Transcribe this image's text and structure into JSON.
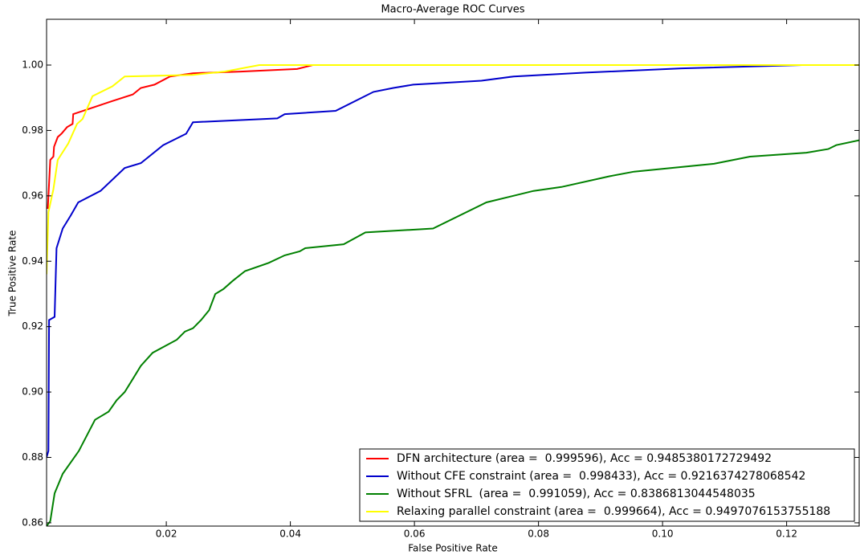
{
  "chart_data": {
    "type": "line",
    "title": "Macro-Average ROC Curves",
    "x_label": "False Positive Rate",
    "y_label": "True Positive Rate",
    "xlim": [
      0.0007,
      0.1317
    ],
    "ylim": [
      0.859,
      1.014
    ],
    "xticks": [
      0.02,
      0.04,
      0.06,
      0.08,
      {
        "value": 0.1,
        "label": "0.10"
      },
      0.12
    ],
    "yticks": [
      0.86,
      0.88,
      {
        "value": 0.9,
        "label": "0.90"
      },
      0.92,
      0.94,
      0.96,
      0.98,
      {
        "value": 1,
        "label": "1.00"
      }
    ],
    "legend": "lower right",
    "series": [
      {
        "name": "DFN architecture (area =  0.999596), Acc = 0.9485380172729492",
        "color": "#ff0000",
        "x": [
          0.0009,
          0.0013,
          0.0018,
          0.0019,
          0.0025,
          0.0031,
          0.004,
          0.0049,
          0.005,
          0.0113,
          0.0146,
          0.0159,
          0.0181,
          0.0206,
          0.0243,
          0.032,
          0.0411,
          0.0436,
          0.1317
        ],
        "values": [
          0.956,
          0.971,
          0.972,
          0.975,
          0.978,
          0.979,
          0.981,
          0.982,
          0.985,
          0.989,
          0.991,
          0.993,
          0.994,
          0.9965,
          0.9975,
          0.998,
          0.9988,
          1.0,
          1.0
        ]
      },
      {
        "name": "Without CFE constraint (area =  0.998433), Acc = 0.9216374278068542",
        "color": "#0000cc",
        "x": [
          0.0007,
          0.001,
          0.0011,
          0.002,
          0.0023,
          0.0033,
          0.0046,
          0.0058,
          0.0094,
          0.0133,
          0.0159,
          0.0172,
          0.0195,
          0.0232,
          0.0243,
          0.0379,
          0.0391,
          0.0473,
          0.0534,
          0.0566,
          0.0598,
          0.0708,
          0.076,
          0.0876,
          0.1031,
          0.1225,
          0.1317
        ],
        "values": [
          0.88,
          0.882,
          0.922,
          0.923,
          0.944,
          0.95,
          0.954,
          0.958,
          0.9615,
          0.9685,
          0.97,
          0.972,
          0.9755,
          0.979,
          0.9825,
          0.9837,
          0.985,
          0.986,
          0.9918,
          0.993,
          0.994,
          0.9952,
          0.9965,
          0.9977,
          0.999,
          1.0,
          1.0
        ]
      },
      {
        "name": "Without SFRL  (area =  0.991059), Acc = 0.8386813044548035",
        "color": "#008000",
        "x": [
          0.0007,
          0.0013,
          0.002,
          0.0033,
          0.0059,
          0.0085,
          0.0107,
          0.012,
          0.0133,
          0.0146,
          0.0159,
          0.0178,
          0.0217,
          0.023,
          0.0243,
          0.0256,
          0.0269,
          0.0279,
          0.0292,
          0.0307,
          0.0327,
          0.0365,
          0.0391,
          0.0415,
          0.0424,
          0.0486,
          0.0521,
          0.063,
          0.0716,
          0.0792,
          0.0837,
          0.0915,
          0.0954,
          0.1083,
          0.1141,
          0.1232,
          0.1267,
          0.128,
          0.1317
        ],
        "values": [
          0.859,
          0.8605,
          0.869,
          0.875,
          0.882,
          0.8915,
          0.894,
          0.8975,
          0.9,
          0.904,
          0.908,
          0.912,
          0.916,
          0.9185,
          0.9195,
          0.922,
          0.925,
          0.93,
          0.9315,
          0.934,
          0.937,
          0.9395,
          0.9418,
          0.943,
          0.944,
          0.9452,
          0.9488,
          0.95,
          0.958,
          0.9615,
          0.9627,
          0.966,
          0.9674,
          0.9698,
          0.972,
          0.9732,
          0.9743,
          0.9755,
          0.977
        ]
      },
      {
        "name": "Relaxing parallel constraint (area =  0.999664), Acc = 0.9497076153755188",
        "color": "#ffff00",
        "x": [
          0.0007,
          0.001,
          0.0018,
          0.0025,
          0.0042,
          0.0056,
          0.0065,
          0.0081,
          0.0113,
          0.0133,
          0.0243,
          0.0294,
          0.035,
          0.1317
        ],
        "values": [
          0.936,
          0.955,
          0.962,
          0.971,
          0.976,
          0.982,
          0.9835,
          0.9905,
          0.9935,
          0.9965,
          0.997,
          0.998,
          1.0,
          1.0
        ]
      }
    ]
  }
}
